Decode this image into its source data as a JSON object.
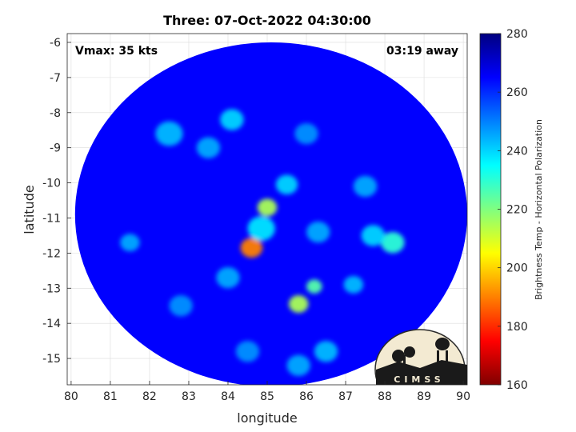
{
  "chart_data": {
    "type": "heatmap",
    "title": "Three: 07-Oct-2022 04:30:00",
    "xlabel": "longitude",
    "ylabel": "latitude",
    "xlim": [
      79.9,
      90.1
    ],
    "ylim": [
      -15.75,
      -5.75
    ],
    "xticks": [
      80,
      81,
      82,
      83,
      84,
      85,
      86,
      87,
      88,
      89,
      90
    ],
    "xtick_labels": [
      "80",
      "81",
      "82",
      "83",
      "84",
      "85",
      "86",
      "87",
      "88",
      "89",
      "90"
    ],
    "yticks": [
      -6,
      -7,
      -8,
      -9,
      -10,
      -11,
      -12,
      -13,
      -14,
      -15
    ],
    "ytick_labels": [
      "-6",
      "-7",
      "-8",
      "-9",
      "-10",
      "-11",
      "-12",
      "-13",
      "-14",
      "-15"
    ],
    "grid": true,
    "annotations": {
      "vmax": "Vmax: 35 kts",
      "time_away": "03:19 away"
    },
    "colorbar": {
      "label": "Brightness Temp - Horizontal Polarization",
      "min": 160,
      "max": 280,
      "ticks": [
        160,
        180,
        200,
        220,
        240,
        260,
        280
      ],
      "tick_labels": [
        "160",
        "180",
        "200",
        "220",
        "240",
        "260",
        "280"
      ],
      "colormap": [
        "#800000",
        "#ff0000",
        "#ff8000",
        "#ffff00",
        "#80ff80",
        "#00ffff",
        "#0080ff",
        "#0000ff",
        "#000080"
      ]
    },
    "swath": {
      "center": [
        85.1,
        -10.9
      ],
      "radius_lon": 5.0,
      "radius_lat": 4.9,
      "background_value": 265
    },
    "features": [
      {
        "lon": 85.0,
        "lat": -10.7,
        "value": 215,
        "size": 0.25
      },
      {
        "lon": 84.6,
        "lat": -11.85,
        "value": 190,
        "size": 0.28
      },
      {
        "lon": 84.85,
        "lat": -11.3,
        "value": 238,
        "size": 0.35
      },
      {
        "lon": 85.8,
        "lat": -13.45,
        "value": 215,
        "size": 0.25
      },
      {
        "lon": 86.2,
        "lat": -12.95,
        "value": 225,
        "size": 0.2
      },
      {
        "lon": 85.5,
        "lat": -10.05,
        "value": 240,
        "size": 0.28
      },
      {
        "lon": 84.1,
        "lat": -8.2,
        "value": 240,
        "size": 0.3
      },
      {
        "lon": 82.5,
        "lat": -8.6,
        "value": 243,
        "size": 0.35
      },
      {
        "lon": 83.5,
        "lat": -9.0,
        "value": 245,
        "size": 0.3
      },
      {
        "lon": 88.2,
        "lat": -11.7,
        "value": 230,
        "size": 0.3
      },
      {
        "lon": 87.7,
        "lat": -11.5,
        "value": 240,
        "size": 0.3
      },
      {
        "lon": 87.2,
        "lat": -12.9,
        "value": 243,
        "size": 0.25
      },
      {
        "lon": 86.3,
        "lat": -11.4,
        "value": 245,
        "size": 0.3
      },
      {
        "lon": 87.5,
        "lat": -10.1,
        "value": 245,
        "size": 0.3
      },
      {
        "lon": 86.0,
        "lat": -8.6,
        "value": 248,
        "size": 0.3
      },
      {
        "lon": 81.5,
        "lat": -11.7,
        "value": 245,
        "size": 0.25
      },
      {
        "lon": 82.8,
        "lat": -13.5,
        "value": 248,
        "size": 0.3
      },
      {
        "lon": 84.0,
        "lat": -12.7,
        "value": 245,
        "size": 0.3
      },
      {
        "lon": 86.5,
        "lat": -14.8,
        "value": 243,
        "size": 0.3
      },
      {
        "lon": 85.8,
        "lat": -15.2,
        "value": 245,
        "size": 0.3
      },
      {
        "lon": 84.5,
        "lat": -14.8,
        "value": 248,
        "size": 0.3
      }
    ]
  },
  "logo": {
    "text": "CIMSS"
  }
}
